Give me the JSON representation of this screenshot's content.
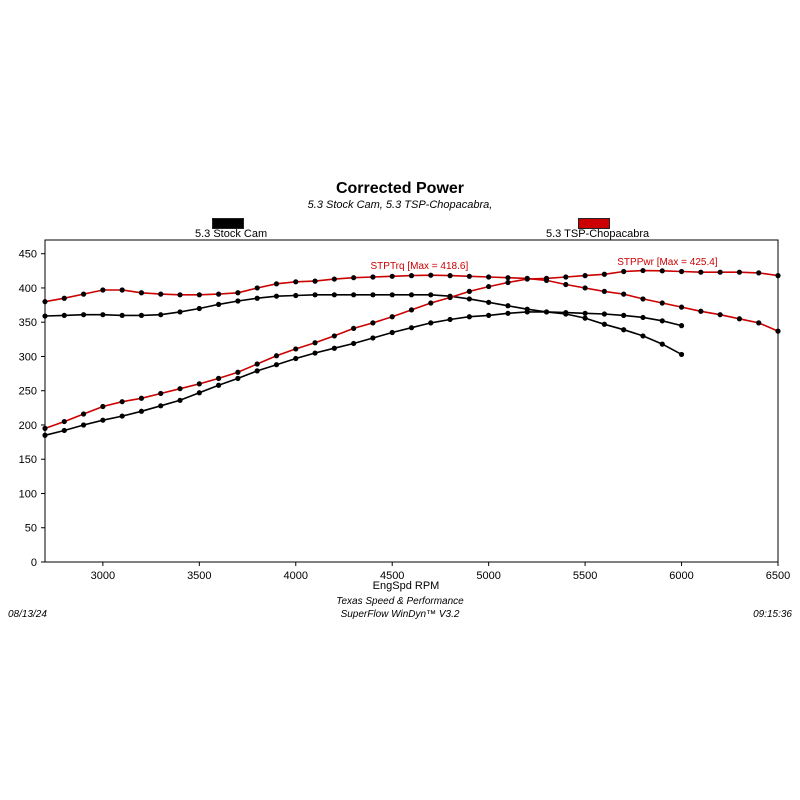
{
  "chart_data": {
    "type": "line",
    "title": "Corrected Power",
    "subtitle": "5.3 Stock Cam, 5.3 TSP-Chopacabra,",
    "xlabel": "EngSpd RPM",
    "ylabel": "",
    "xlim": [
      2700,
      6500
    ],
    "ylim": [
      0,
      470
    ],
    "x_ticks": [
      3000,
      3500,
      4000,
      4500,
      5000,
      5500,
      6000,
      6500
    ],
    "y_ticks": [
      0,
      50,
      100,
      150,
      200,
      250,
      300,
      350,
      400,
      450
    ],
    "grid": true,
    "legend": [
      {
        "name": "5.3 Stock Cam",
        "color": "#000000"
      },
      {
        "name": "5.3 TSP-Chopacabra",
        "color": "#cc0000"
      }
    ],
    "series": [
      {
        "name": "5.3 Stock Cam",
        "measure": "STPTrq",
        "color": "#000000",
        "x": [
          2700,
          2800,
          2900,
          3000,
          3100,
          3200,
          3300,
          3400,
          3500,
          3600,
          3700,
          3800,
          3900,
          4000,
          4100,
          4200,
          4300,
          4400,
          4500,
          4600,
          4700,
          4800,
          4900,
          5000,
          5100,
          5200,
          5300,
          5400,
          5500,
          5600,
          5700,
          5800,
          5900,
          6000
        ],
        "y": [
          359,
          360,
          361,
          361,
          360,
          360,
          361,
          365,
          370,
          376,
          381,
          385,
          388,
          389,
          390,
          390,
          390,
          390,
          390,
          390,
          390,
          388,
          384,
          379,
          374,
          369,
          365,
          362,
          356,
          347,
          339,
          330,
          318,
          303
        ]
      },
      {
        "name": "5.3 Stock Cam",
        "measure": "STPPwr",
        "color": "#000000",
        "x": [
          2700,
          2800,
          2900,
          3000,
          3100,
          3200,
          3300,
          3400,
          3500,
          3600,
          3700,
          3800,
          3900,
          4000,
          4100,
          4200,
          4300,
          4400,
          4500,
          4600,
          4700,
          4800,
          4900,
          5000,
          5100,
          5200,
          5300,
          5400,
          5500,
          5600,
          5700,
          5800,
          5900,
          6000
        ],
        "y": [
          185,
          192,
          200,
          207,
          213,
          220,
          228,
          236,
          247,
          258,
          268,
          279,
          288,
          297,
          305,
          312,
          319,
          327,
          335,
          342,
          349,
          354,
          358,
          360,
          363,
          365,
          365,
          364,
          363,
          362,
          360,
          357,
          352,
          345
        ]
      },
      {
        "name": "5.3 TSP-Chopacabra",
        "measure": "STPTrq",
        "color": "#cc0000",
        "max_label": "STPTrq [Max = 418.6]",
        "x": [
          2700,
          2800,
          2900,
          3000,
          3100,
          3200,
          3300,
          3400,
          3500,
          3600,
          3700,
          3800,
          3900,
          4000,
          4100,
          4200,
          4300,
          4400,
          4500,
          4600,
          4700,
          4800,
          4900,
          5000,
          5100,
          5200,
          5300,
          5400,
          5500,
          5600,
          5700,
          5800,
          5900,
          6000,
          6100,
          6200,
          6300,
          6400,
          6500
        ],
        "y": [
          380,
          385,
          391,
          397,
          397,
          393,
          391,
          390,
          390,
          391,
          393,
          400,
          406,
          409,
          410,
          413,
          415,
          416,
          417,
          418,
          418.6,
          418,
          417,
          416,
          415,
          414,
          411,
          405,
          400,
          395,
          391,
          384,
          378,
          372,
          366,
          361,
          355,
          349,
          337
        ]
      },
      {
        "name": "5.3 TSP-Chopacabra",
        "measure": "STPPwr",
        "color": "#cc0000",
        "max_label": "STPPwr [Max = 425.4]",
        "x": [
          2700,
          2800,
          2900,
          3000,
          3100,
          3200,
          3300,
          3400,
          3500,
          3600,
          3700,
          3800,
          3900,
          4000,
          4100,
          4200,
          4300,
          4400,
          4500,
          4600,
          4700,
          4800,
          4900,
          5000,
          5100,
          5200,
          5300,
          5400,
          5500,
          5600,
          5700,
          5800,
          5900,
          6000,
          6100,
          6200,
          6300,
          6400,
          6500
        ],
        "y": [
          195,
          205,
          216,
          227,
          234,
          239,
          246,
          253,
          260,
          268,
          277,
          289,
          301,
          311,
          320,
          330,
          341,
          349,
          358,
          368,
          378,
          386,
          395,
          402,
          408,
          413,
          414,
          416,
          418,
          420,
          424,
          425.4,
          425,
          424,
          423,
          423,
          423,
          422,
          418
        ]
      }
    ]
  },
  "footer": {
    "date": "08/13/24",
    "time": "09:15:36",
    "company": "Texas Speed & Performance",
    "software": "SuperFlow WinDyn™ V3.2"
  }
}
